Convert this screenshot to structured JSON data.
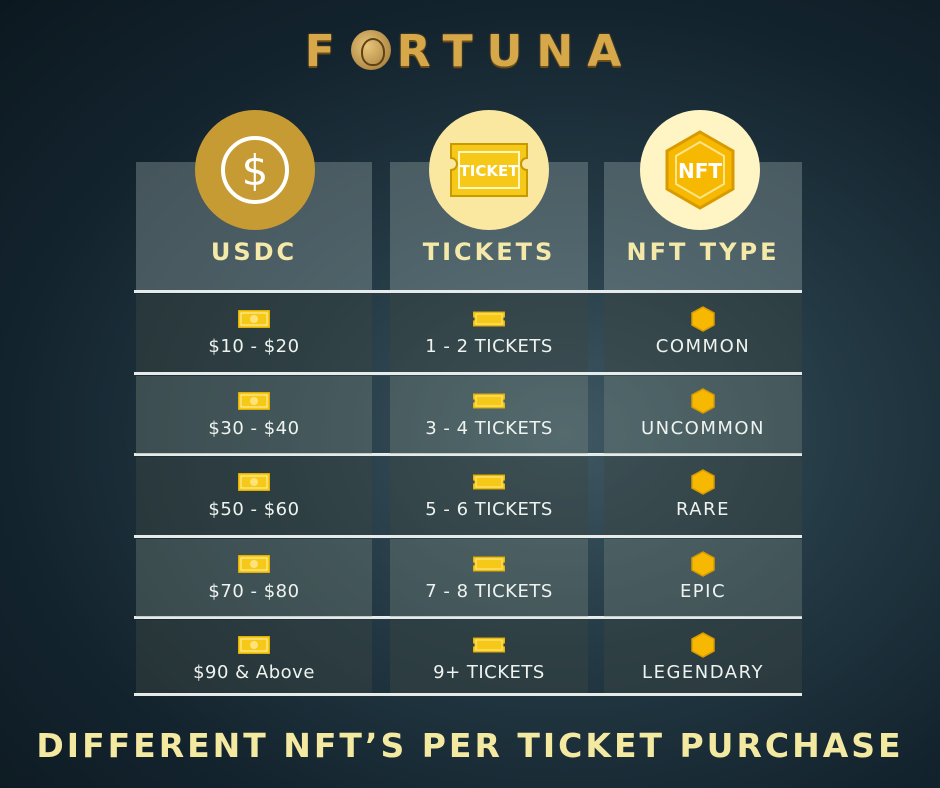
{
  "brand": {
    "name_prefix": "F",
    "name_suffix": "RTUNA"
  },
  "headers": [
    {
      "label": "USDC",
      "icon": "dollar-coin-icon"
    },
    {
      "label": "TICKETS",
      "icon": "ticket-icon"
    },
    {
      "label": "NFT TYPE",
      "icon": "nft-badge-icon"
    }
  ],
  "rows": [
    {
      "usdc": "$10 - $20",
      "tickets": "1 - 2 TICKETS",
      "nft": "COMMON"
    },
    {
      "usdc": "$30 - $40",
      "tickets": "3 - 4 TICKETS",
      "nft": "UNCOMMON"
    },
    {
      "usdc": "$50 - $60",
      "tickets": "5 - 6 TICKETS",
      "nft": "RARE"
    },
    {
      "usdc": "$70 - $80",
      "tickets": "7 - 8 TICKETS",
      "nft": "EPIC"
    },
    {
      "usdc": "$90 & Above",
      "tickets": "9+ TICKETS",
      "nft": "LEGENDARY"
    }
  ],
  "icon_labels": {
    "ticket": "TICKET",
    "nft": "NFT",
    "dollar": "$"
  },
  "footer": "DIFFERENT NFT’S PER TICKET PURCHASE",
  "colors": {
    "gold": "#c69b34",
    "cream": "#f4e9a8",
    "ticket_yellow": "#f6c818"
  }
}
